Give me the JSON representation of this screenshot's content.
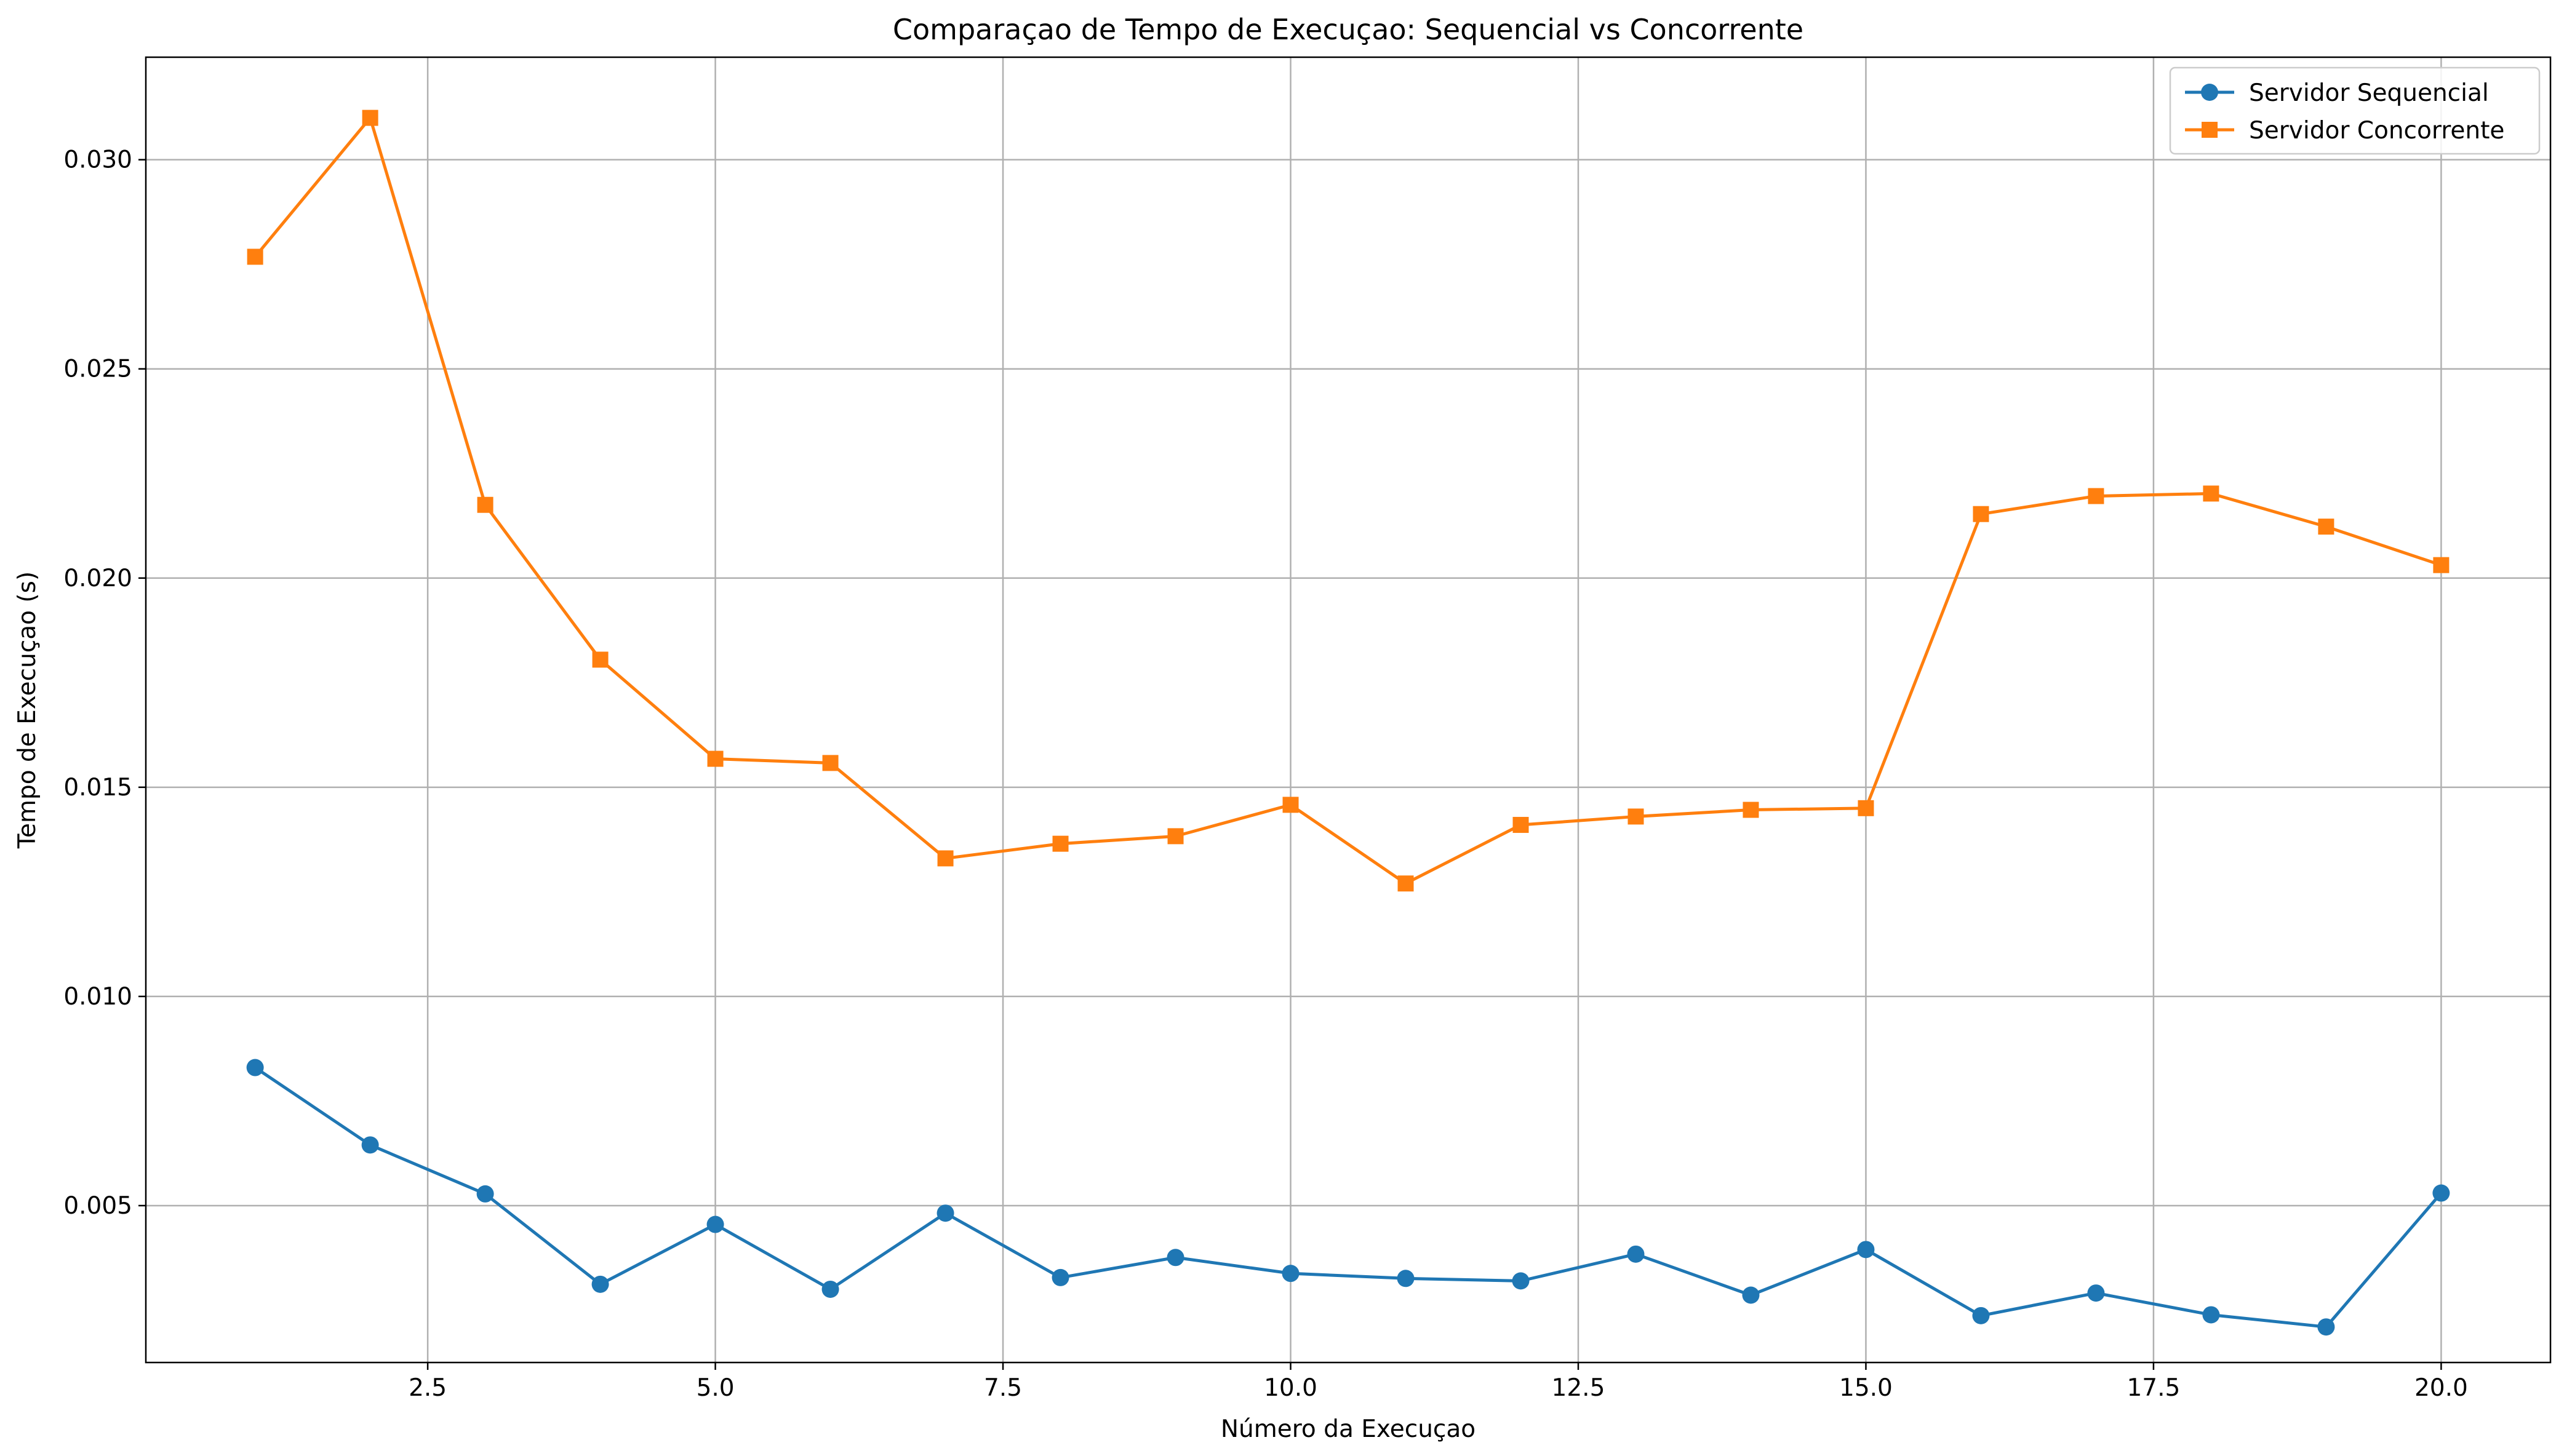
{
  "chart_data": {
    "type": "line",
    "title": "Comparaçao de Tempo de Execuçao: Sequencial vs Concorrente",
    "xlabel": "Número da Execuçao",
    "ylabel": "Tempo de Execuçao (s)",
    "xlim": [
      0.05,
      20.95
    ],
    "ylim": [
      0.00125,
      0.03245
    ],
    "x_ticks": [
      2.5,
      5.0,
      7.5,
      10.0,
      12.5,
      15.0,
      17.5,
      20.0
    ],
    "x_tick_labels": [
      "2.5",
      "5.0",
      "7.5",
      "10.0",
      "12.5",
      "15.0",
      "17.5",
      "20.0"
    ],
    "y_ticks": [
      0.005,
      0.01,
      0.015,
      0.02,
      0.025,
      0.03
    ],
    "y_tick_labels": [
      "0.005",
      "0.010",
      "0.015",
      "0.020",
      "0.025",
      "0.030"
    ],
    "grid": true,
    "legend_position": "top-right",
    "x": [
      1,
      2,
      3,
      4,
      5,
      6,
      7,
      8,
      9,
      10,
      11,
      12,
      13,
      14,
      15,
      16,
      17,
      18,
      19,
      20
    ],
    "series": [
      {
        "name": "Servidor Sequencial",
        "color": "#1f77b4",
        "marker": "circle",
        "values": [
          0.0083,
          0.00645,
          0.00528,
          0.00312,
          0.00455,
          0.003,
          0.00482,
          0.00328,
          0.00376,
          0.00338,
          0.00326,
          0.0032,
          0.00384,
          0.00286,
          0.00395,
          0.00237,
          0.00291,
          0.00239,
          0.0021,
          0.0053
        ]
      },
      {
        "name": "Servidor Concorrente",
        "color": "#ff7f0e",
        "marker": "square",
        "values": [
          0.02768,
          0.031,
          0.02175,
          0.01805,
          0.01568,
          0.01558,
          0.0133,
          0.01365,
          0.01383,
          0.01458,
          0.0127,
          0.0141,
          0.0143,
          0.01446,
          0.0145,
          0.02153,
          0.02196,
          0.02202,
          0.02123,
          0.02031
        ]
      }
    ]
  }
}
